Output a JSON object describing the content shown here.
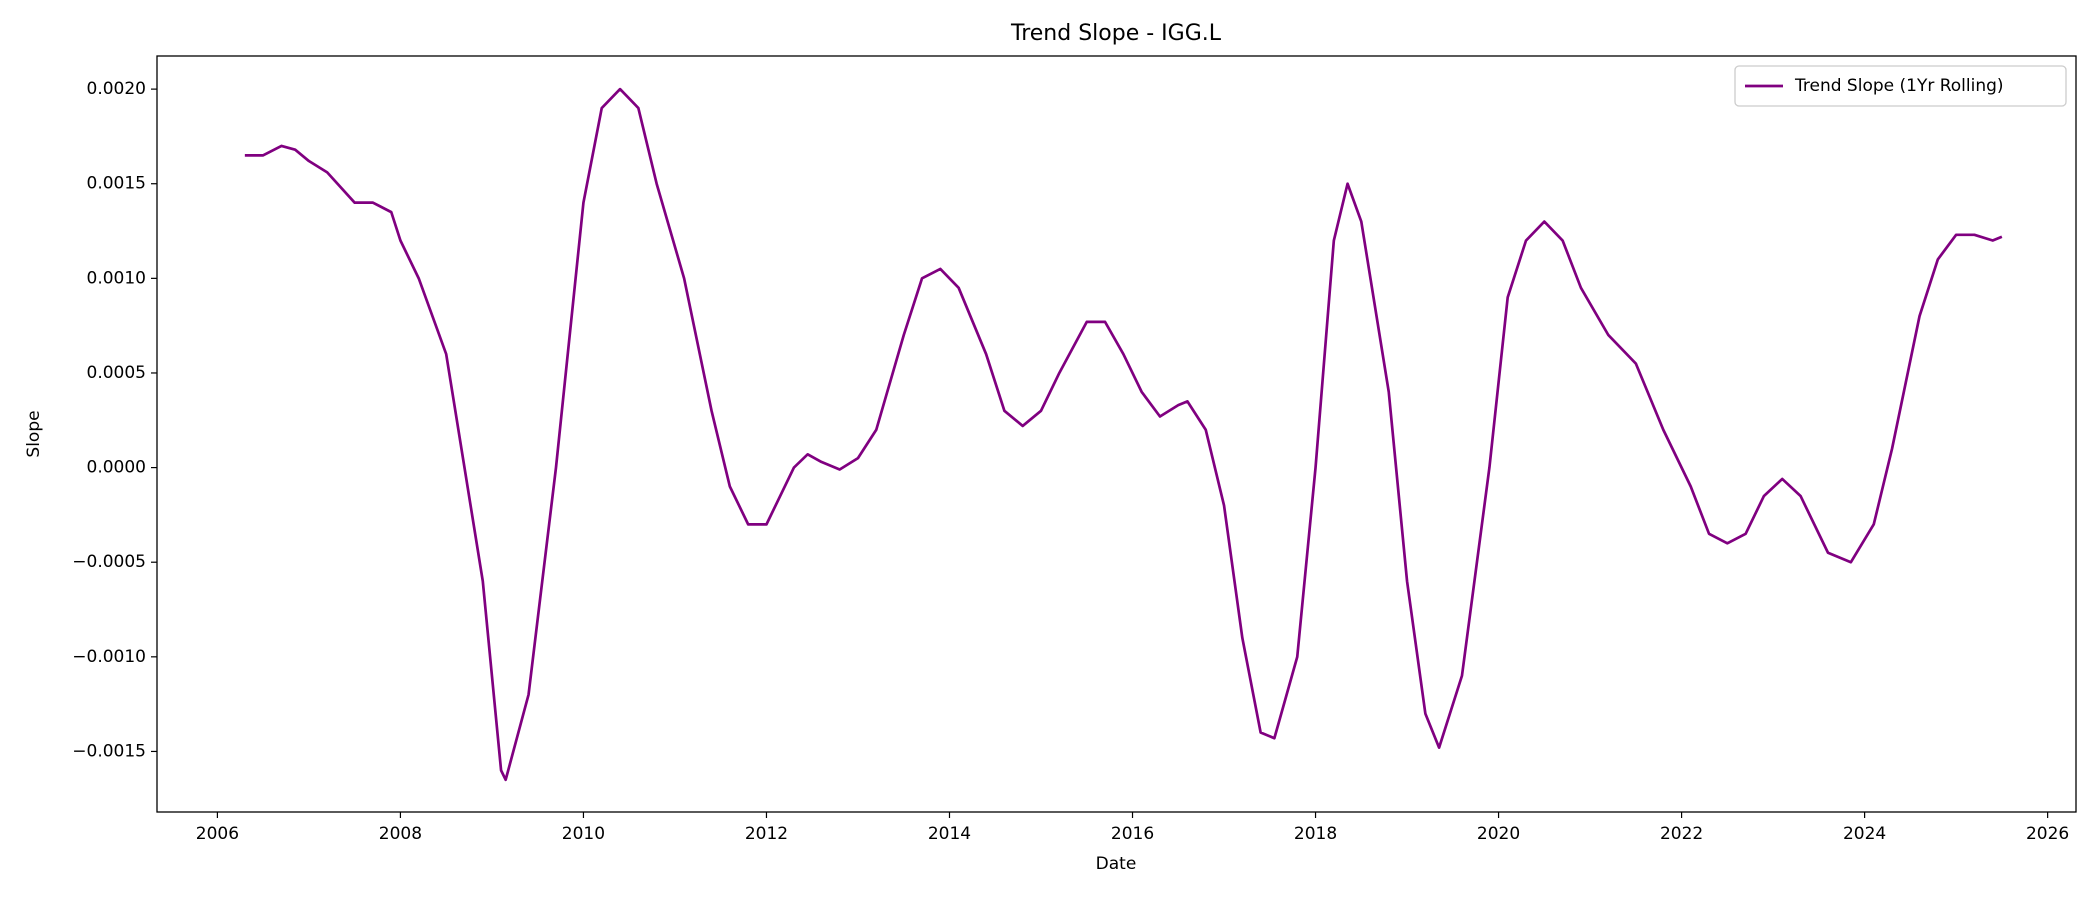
{
  "chart_data": {
    "type": "line",
    "title": "Trend Slope - IGG.L",
    "x_label": "Date",
    "y_label": "Slope",
    "x": [
      2006.3,
      2006.5,
      2006.7,
      2006.85,
      2007.0,
      2007.2,
      2007.5,
      2007.7,
      2007.9,
      2008.0,
      2008.2,
      2008.5,
      2008.7,
      2008.9,
      2009.1,
      2009.15,
      2009.4,
      2009.7,
      2010.0,
      2010.2,
      2010.4,
      2010.6,
      2010.8,
      2011.1,
      2011.4,
      2011.6,
      2011.8,
      2012.0,
      2012.3,
      2012.45,
      2012.6,
      2012.8,
      2013.0,
      2013.2,
      2013.5,
      2013.7,
      2013.9,
      2014.1,
      2014.4,
      2014.6,
      2014.8,
      2015.0,
      2015.2,
      2015.5,
      2015.7,
      2015.9,
      2016.1,
      2016.3,
      2016.5,
      2016.6,
      2016.8,
      2017.0,
      2017.2,
      2017.4,
      2017.55,
      2017.8,
      2018.0,
      2018.2,
      2018.35,
      2018.5,
      2018.8,
      2019.0,
      2019.2,
      2019.35,
      2019.6,
      2019.9,
      2020.1,
      2020.3,
      2020.5,
      2020.7,
      2020.9,
      2021.2,
      2021.5,
      2021.8,
      2022.1,
      2022.3,
      2022.5,
      2022.7,
      2022.9,
      2023.1,
      2023.3,
      2023.6,
      2023.85,
      2024.1,
      2024.3,
      2024.6,
      2024.8,
      2025.0,
      2025.2,
      2025.4,
      2025.5
    ],
    "series": [
      {
        "name": "Trend Slope (1Yr Rolling)",
        "color": "#800080",
        "values": [
          0.00165,
          0.00165,
          0.0017,
          0.00168,
          0.00162,
          0.00156,
          0.0014,
          0.0014,
          0.00135,
          0.0012,
          0.001,
          0.0006,
          0.0,
          -0.0006,
          -0.0016,
          -0.00165,
          -0.0012,
          0.0,
          0.0014,
          0.0019,
          0.002,
          0.0019,
          0.0015,
          0.001,
          0.0003,
          -0.0001,
          -0.0003,
          -0.0003,
          0.0,
          7e-05,
          3e-05,
          -1e-05,
          5e-05,
          0.0002,
          0.0007,
          0.001,
          0.00105,
          0.00095,
          0.0006,
          0.0003,
          0.00022,
          0.0003,
          0.0005,
          0.00077,
          0.00077,
          0.0006,
          0.0004,
          0.00027,
          0.00033,
          0.00035,
          0.0002,
          -0.0002,
          -0.0009,
          -0.0014,
          -0.00143,
          -0.001,
          0.0,
          0.0012,
          0.0015,
          0.0013,
          0.0004,
          -0.0006,
          -0.0013,
          -0.00148,
          -0.0011,
          0.0,
          0.0009,
          0.0012,
          0.0013,
          0.0012,
          0.00095,
          0.0007,
          0.00055,
          0.0002,
          -0.0001,
          -0.00035,
          -0.0004,
          -0.00035,
          -0.00015,
          -6e-05,
          -0.00015,
          -0.00045,
          -0.0005,
          -0.0003,
          0.0001,
          0.0008,
          0.0011,
          0.00123,
          0.00123,
          0.0012,
          0.00122
        ]
      }
    ],
    "xlim": [
      2005.34,
      2026.31
    ],
    "xticks": [
      2006,
      2008,
      2010,
      2012,
      2014,
      2016,
      2018,
      2020,
      2022,
      2024,
      2026
    ],
    "ylim": [
      -0.00182,
      0.002175
    ],
    "yticks": [
      {
        "value": -0.0015,
        "label": "−0.0015"
      },
      {
        "value": -0.001,
        "label": "−0.0010"
      },
      {
        "value": -0.0005,
        "label": "−0.0005"
      },
      {
        "value": 0,
        "label": "0.0000"
      },
      {
        "value": 0.0005,
        "label": "0.0005"
      },
      {
        "value": 0.001,
        "label": "0.0010"
      },
      {
        "value": 0.0015,
        "label": "0.0015"
      },
      {
        "value": 0.002,
        "label": "0.0020"
      }
    ],
    "grid": false,
    "legend": "upper right"
  }
}
